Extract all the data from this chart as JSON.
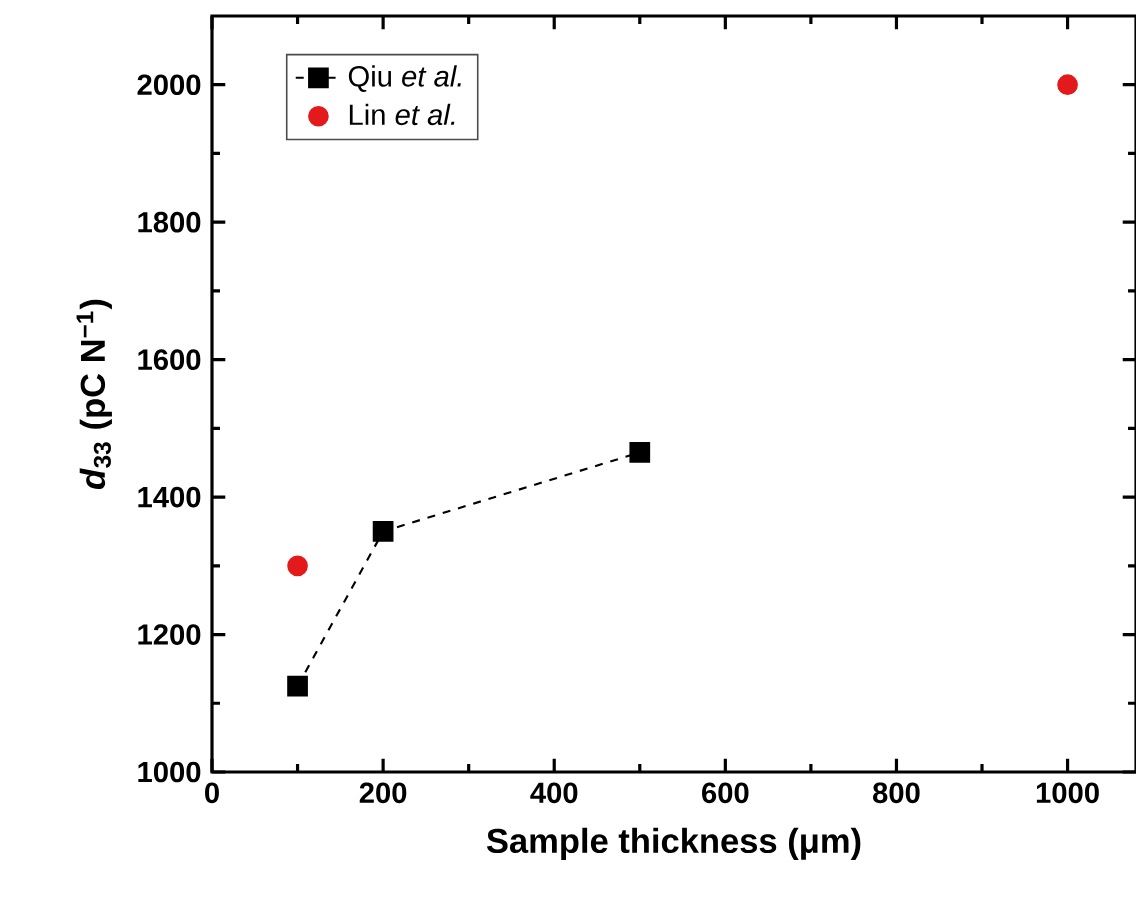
{
  "chart_data": {
    "type": "line",
    "xlabel": "Sample thickness (μm)",
    "ylabel": "*d*$_{33}$ (pC N$^{−1}$)",
    "xlim": [
      0,
      1080
    ],
    "ylim": [
      1000,
      2100
    ],
    "xticks": [
      0,
      200,
      400,
      600,
      800,
      1000
    ],
    "yticks": [
      1000,
      1200,
      1400,
      1600,
      1800,
      2000
    ],
    "legend": "top left",
    "grid": false,
    "series": [
      {
        "name": "Qiu *et al.*",
        "color": "#000000",
        "marker": "square",
        "line_style": "dashed",
        "x": [
          100,
          200,
          500
        ],
        "values": [
          1125,
          1350,
          1465
        ]
      },
      {
        "name": "Lin *et al.*",
        "color": "#e31a1c",
        "marker": "circle",
        "type": "scatter",
        "x": [
          100,
          1000
        ],
        "values": [
          1300,
          2000
        ]
      }
    ]
  }
}
